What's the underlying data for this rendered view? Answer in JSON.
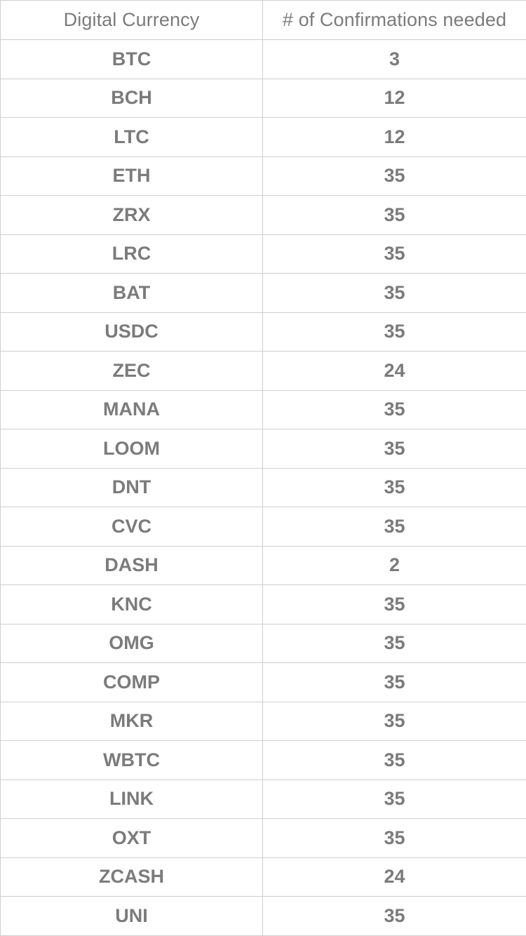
{
  "table": {
    "headers": [
      "Digital Currency",
      "# of Confirmations needed"
    ],
    "rows": [
      {
        "currency": "BTC",
        "confirmations": "3"
      },
      {
        "currency": "BCH",
        "confirmations": "12"
      },
      {
        "currency": "LTC",
        "confirmations": "12"
      },
      {
        "currency": "ETH",
        "confirmations": "35"
      },
      {
        "currency": "ZRX",
        "confirmations": "35"
      },
      {
        "currency": "LRC",
        "confirmations": "35"
      },
      {
        "currency": "BAT",
        "confirmations": "35"
      },
      {
        "currency": "USDC",
        "confirmations": "35"
      },
      {
        "currency": "ZEC",
        "confirmations": "24"
      },
      {
        "currency": "MANA",
        "confirmations": "35"
      },
      {
        "currency": "LOOM",
        "confirmations": "35"
      },
      {
        "currency": "DNT",
        "confirmations": "35"
      },
      {
        "currency": "CVC",
        "confirmations": "35"
      },
      {
        "currency": "DASH",
        "confirmations": "2"
      },
      {
        "currency": "KNC",
        "confirmations": "35"
      },
      {
        "currency": "OMG",
        "confirmations": "35"
      },
      {
        "currency": "COMP",
        "confirmations": "35"
      },
      {
        "currency": "MKR",
        "confirmations": "35"
      },
      {
        "currency": "WBTC",
        "confirmations": "35"
      },
      {
        "currency": "LINK",
        "confirmations": "35"
      },
      {
        "currency": "OXT",
        "confirmations": "35"
      },
      {
        "currency": "ZCASH",
        "confirmations": "24"
      },
      {
        "currency": "UNI",
        "confirmations": "35"
      }
    ]
  },
  "colors": {
    "text": "#7b7b7b",
    "border": "#cfcfcf",
    "background": "#ffffff"
  }
}
